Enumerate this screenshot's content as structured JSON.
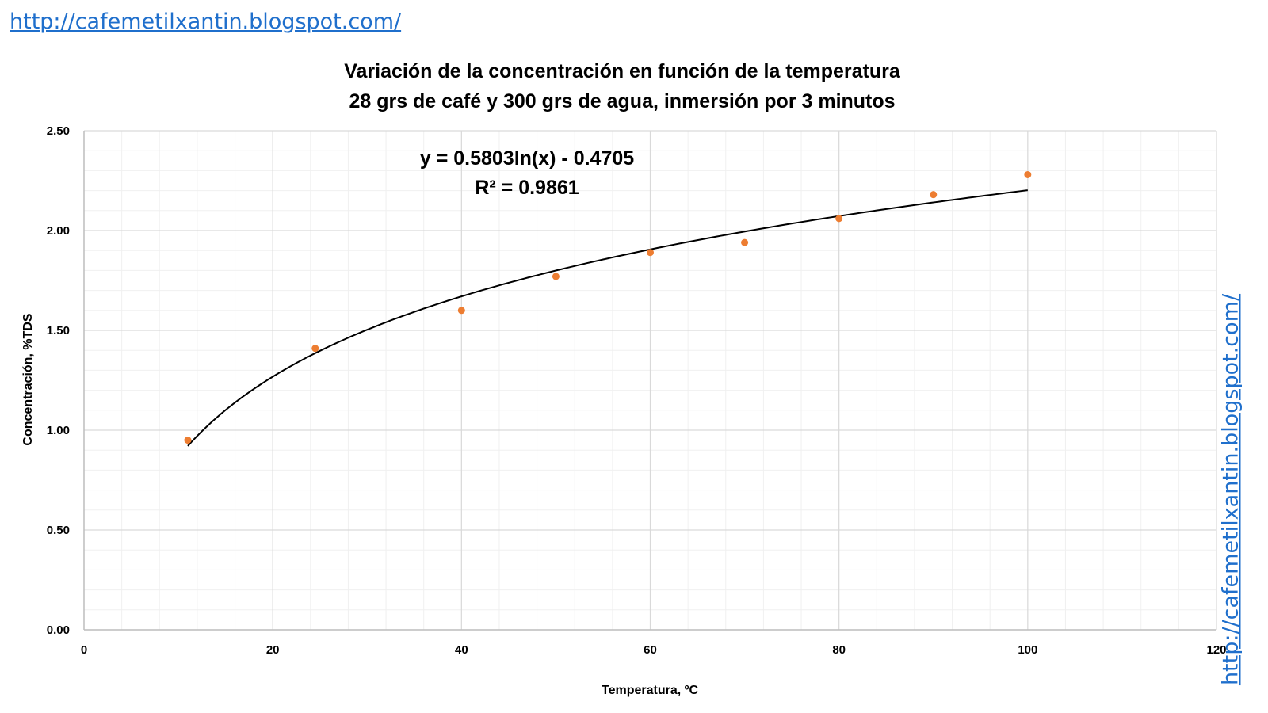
{
  "watermark": {
    "top_link": "http://cafemetilxantin.blogspot.com/",
    "side_link": "http://cafemetilxantin.blogspot.com/"
  },
  "chart_data": {
    "type": "scatter",
    "title": "Variación de la concentración en función de la temperatura",
    "subtitle": "28 grs de café y 300 grs de agua, inmersión por 3 minutos",
    "xlabel": "Temperatura, ºC",
    "ylabel": "Concentración, %TDS",
    "xlim": [
      0,
      120
    ],
    "ylim": [
      0,
      2.5
    ],
    "x_ticks": [
      0,
      20,
      40,
      60,
      80,
      100,
      120
    ],
    "x_tick_labels": [
      "0",
      "20",
      "40",
      "60",
      "80",
      "100",
      "120"
    ],
    "y_ticks": [
      0,
      0.5,
      1.0,
      1.5,
      2.0,
      2.5
    ],
    "y_tick_labels": [
      "0.00",
      "0.50",
      "1.00",
      "1.50",
      "2.00",
      "2.50"
    ],
    "grid": true,
    "legend": "none",
    "series": [
      {
        "points": [
          {
            "x": 11,
            "y": 0.95
          },
          {
            "x": 24.5,
            "y": 1.41
          },
          {
            "x": 40,
            "y": 1.6
          },
          {
            "x": 50,
            "y": 1.77
          },
          {
            "x": 60,
            "y": 1.89
          },
          {
            "x": 70,
            "y": 1.94
          },
          {
            "x": 80,
            "y": 2.06
          },
          {
            "x": 90,
            "y": 2.18
          },
          {
            "x": 100,
            "y": 2.28
          }
        ],
        "color": "#ed7d31"
      }
    ],
    "trendline": {
      "type": "logarithmic",
      "a": 0.5803,
      "b": -0.4705,
      "x_range": [
        11,
        100
      ],
      "color": "#000000",
      "equation": "y = 0.5803ln(x) - 0.4705",
      "r_squared": "R² = 0.9861"
    }
  }
}
